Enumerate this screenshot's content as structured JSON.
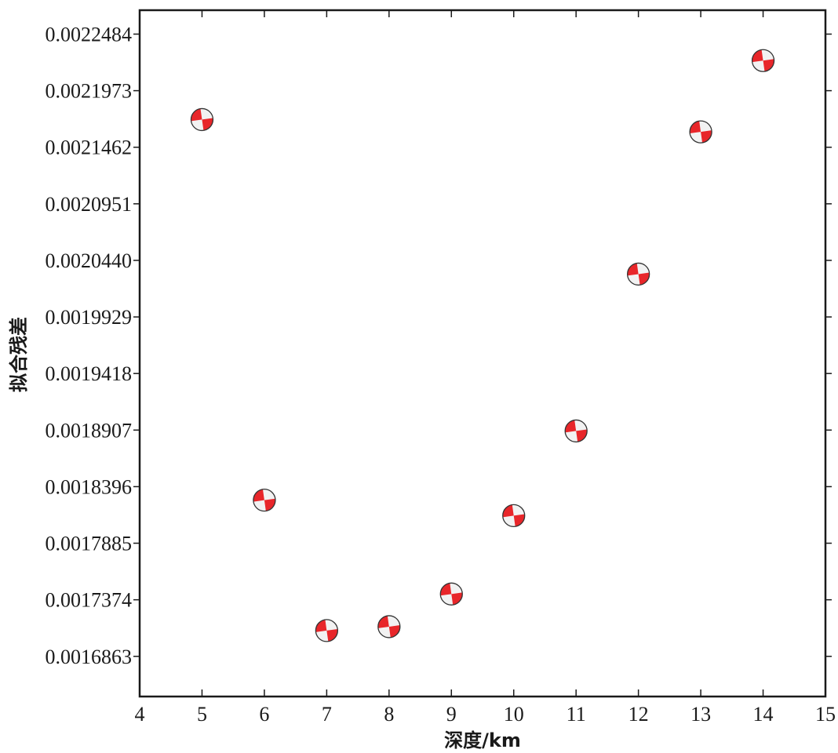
{
  "chart_data": {
    "type": "scatter",
    "xlabel": "深度/km",
    "ylabel": "拟合残差",
    "xlim": [
      4,
      15
    ],
    "ylim": [
      0.00165,
      0.00227
    ],
    "x_ticks": [
      4,
      5,
      6,
      7,
      8,
      9,
      10,
      11,
      12,
      13,
      14,
      15
    ],
    "y_ticks": [
      "0.0016863",
      "0.0017374",
      "0.0017885",
      "0.0018396",
      "0.0018907",
      "0.0019418",
      "0.0019929",
      "0.0020440",
      "0.0020951",
      "0.0021462",
      "0.0021973",
      "0.0022484"
    ],
    "marker": "beachball",
    "marker_colors": {
      "compressional": "#e8262a",
      "dilatational": "#f2f2f2",
      "outline": "#333333"
    },
    "grid": false,
    "points": [
      {
        "x": 5,
        "y": 0.0021712
      },
      {
        "x": 6,
        "y": 0.0018274
      },
      {
        "x": 7,
        "y": 0.0017096
      },
      {
        "x": 8,
        "y": 0.0017131
      },
      {
        "x": 9,
        "y": 0.0017426
      },
      {
        "x": 10,
        "y": 0.0018134
      },
      {
        "x": 11,
        "y": 0.0018899
      },
      {
        "x": 12,
        "y": 0.0020316
      },
      {
        "x": 13,
        "y": 0.0021601
      },
      {
        "x": 14,
        "y": 0.0022245
      }
    ]
  }
}
